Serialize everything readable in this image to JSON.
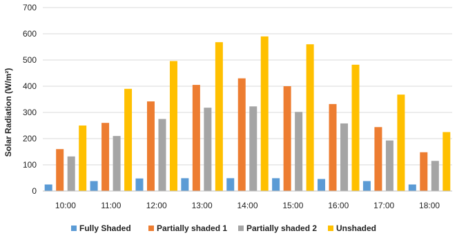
{
  "chart_data": {
    "type": "bar",
    "title": "",
    "xlabel": "",
    "ylabel": "Solar Radiation  (W/m²)",
    "ylim": [
      0,
      700
    ],
    "yticks": [
      0,
      100,
      200,
      300,
      400,
      500,
      600,
      700
    ],
    "grid": true,
    "legend_position": "bottom",
    "categories": [
      "10:00",
      "11:00",
      "12:00",
      "13:00",
      "14:00",
      "15:00",
      "16:00",
      "17:00",
      "18:00"
    ],
    "series": [
      {
        "name": "Fully Shaded",
        "color": "#5B9BD5",
        "values": [
          25,
          38,
          48,
          49,
          49,
          49,
          46,
          38,
          25
        ]
      },
      {
        "name": "Partially shaded 1",
        "color": "#ED7D31",
        "values": [
          160,
          260,
          342,
          405,
          430,
          400,
          332,
          244,
          148
        ]
      },
      {
        "name": "Partially shaded 2",
        "color": "#A5A5A5",
        "values": [
          132,
          210,
          275,
          318,
          323,
          302,
          258,
          193,
          115
        ]
      },
      {
        "name": "Unshaded",
        "color": "#FFC000",
        "values": [
          250,
          390,
          496,
          568,
          590,
          560,
          482,
          368,
          225
        ]
      }
    ]
  }
}
